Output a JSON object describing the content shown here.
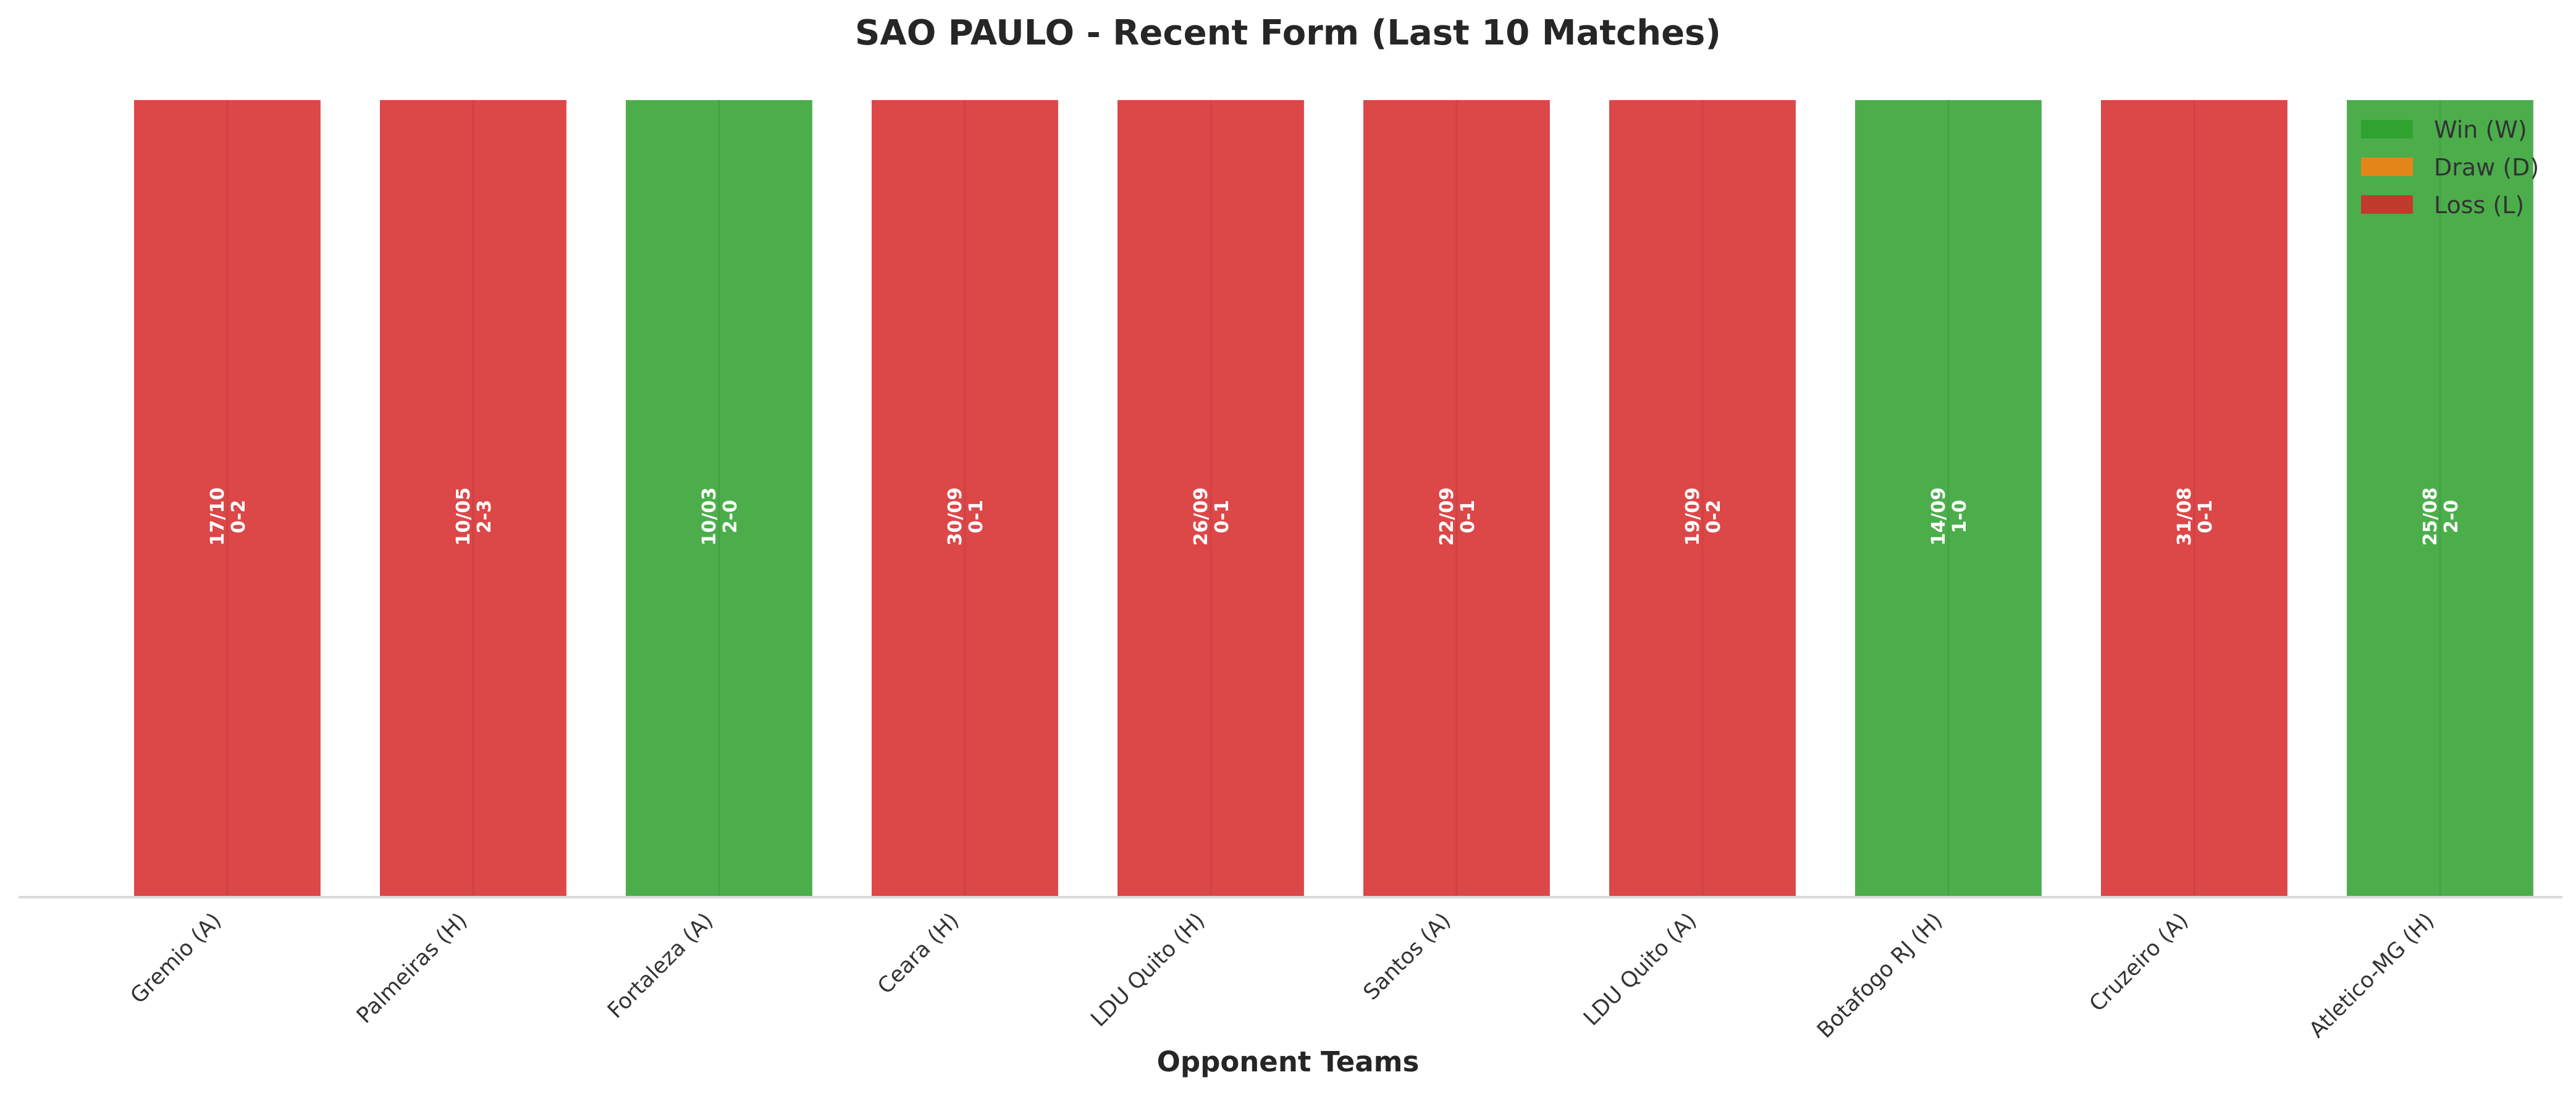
{
  "chart_data": {
    "type": "bar",
    "title": "SAO PAULO - Recent Form (Last 10 Matches)",
    "xlabel": "Opponent Teams",
    "ylabel": "",
    "ylim": [
      0,
      1
    ],
    "grid": false,
    "legend_position": "top-right",
    "categories": [
      "Gremio (A)",
      "Palmeiras (H)",
      "Fortaleza (A)",
      "Ceara (H)",
      "LDU Quito (H)",
      "Santos (A)",
      "LDU Quito (A)",
      "Botafogo RJ (H)",
      "Cruzeiro (A)",
      "Atletico-MG (H)"
    ],
    "values": [
      1,
      1,
      1,
      1,
      1,
      1,
      1,
      1,
      1,
      1
    ],
    "results": [
      "L",
      "L",
      "W",
      "L",
      "L",
      "L",
      "L",
      "W",
      "L",
      "W"
    ],
    "dates": [
      "17/10",
      "10/05",
      "10/03",
      "30/09",
      "26/09",
      "22/09",
      "19/09",
      "14/09",
      "31/08",
      "25/08"
    ],
    "scores": [
      "0-2",
      "2-3",
      "2-0",
      "0-1",
      "0-1",
      "0-1",
      "0-2",
      "1-0",
      "0-1",
      "2-0"
    ],
    "legend": [
      {
        "key": "W",
        "label": "Win (W)",
        "color": "#2ca02c"
      },
      {
        "key": "D",
        "label": "Draw (D)",
        "color": "#ff7f0e"
      },
      {
        "key": "L",
        "label": "Loss (L)",
        "color": "#d62728"
      }
    ],
    "colors": {
      "W": "#2ca02c",
      "D": "#ff7f0e",
      "L": "#d62728"
    }
  }
}
